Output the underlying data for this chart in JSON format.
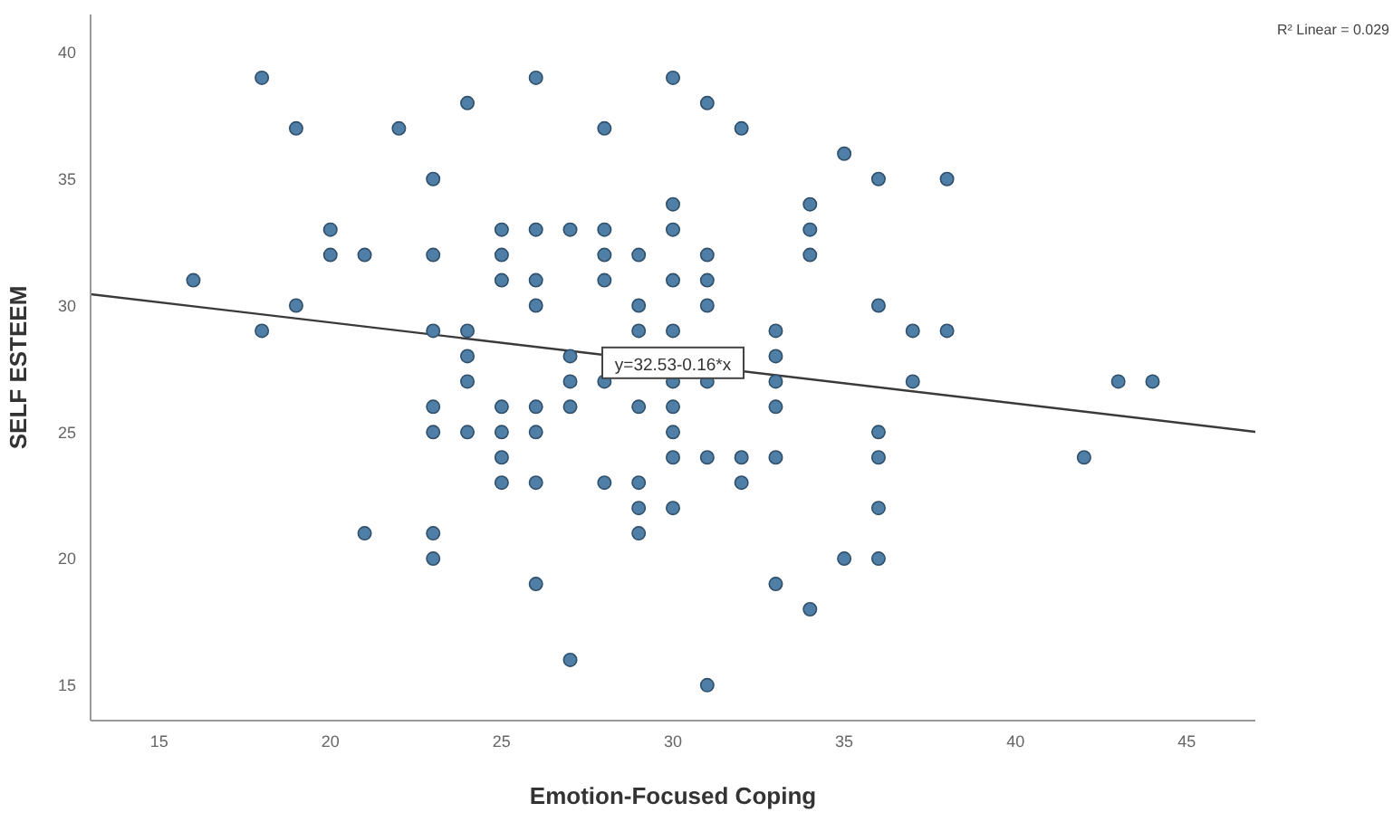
{
  "chart_data": {
    "type": "scatter",
    "xlabel": "Emotion-Focused Coping",
    "ylabel": "SELF ESTEEM",
    "xlim": [
      13,
      47
    ],
    "xticks": [
      15,
      20,
      25,
      30,
      35,
      40,
      45
    ],
    "ylim": [
      13.6,
      41.5
    ],
    "yticks": [
      15,
      20,
      25,
      30,
      35,
      40
    ],
    "marker": "circle",
    "series": [
      {
        "color": "#4f7fa6",
        "x": [
          16,
          18,
          18,
          19,
          19,
          20,
          20,
          21,
          21,
          22,
          23,
          23,
          23,
          23,
          23,
          23,
          23,
          24,
          24,
          24,
          24,
          24,
          25,
          25,
          25,
          25,
          25,
          25,
          25,
          26,
          26,
          26,
          26,
          26,
          26,
          26,
          26,
          27,
          27,
          27,
          27,
          27,
          28,
          28,
          28,
          28,
          28,
          28,
          29,
          29,
          29,
          29,
          29,
          29,
          29,
          30,
          30,
          30,
          30,
          30,
          30,
          30,
          30,
          30,
          30,
          31,
          31,
          31,
          31,
          31,
          31,
          31,
          32,
          32,
          32,
          33,
          33,
          33,
          33,
          33,
          33,
          34,
          34,
          34,
          34,
          35,
          35,
          36,
          36,
          36,
          36,
          36,
          36,
          37,
          37,
          38,
          38,
          42,
          43,
          44
        ],
        "values": [
          31,
          39,
          29,
          37,
          30,
          33,
          32,
          32,
          21,
          37,
          35,
          32,
          29,
          26,
          25,
          21,
          20,
          38,
          29,
          28,
          27,
          25,
          33,
          32,
          31,
          26,
          25,
          24,
          23,
          39,
          33,
          31,
          30,
          26,
          25,
          23,
          19,
          33,
          28,
          27,
          26,
          16,
          37,
          33,
          32,
          31,
          27,
          23,
          32,
          30,
          29,
          26,
          23,
          22,
          21,
          39,
          34,
          33,
          31,
          29,
          27,
          26,
          25,
          24,
          22,
          38,
          32,
          31,
          30,
          27,
          24,
          15,
          37,
          24,
          23,
          29,
          28,
          27,
          26,
          24,
          19,
          34,
          33,
          32,
          18,
          36,
          20,
          35,
          30,
          25,
          24,
          22,
          20,
          29,
          27,
          35,
          29,
          24,
          27,
          27
        ]
      },
      {
        "type": "line",
        "color": "#3a3a3a",
        "line_style": "solid",
        "marker": "none",
        "x": [
          13,
          47
        ],
        "values": [
          30.45,
          25.01
        ]
      }
    ],
    "annotations": [
      "R² Linear = 0.029",
      {
        "text": "y=32.53-0.16*x",
        "x": 30,
        "y": 27.7
      }
    ]
  }
}
